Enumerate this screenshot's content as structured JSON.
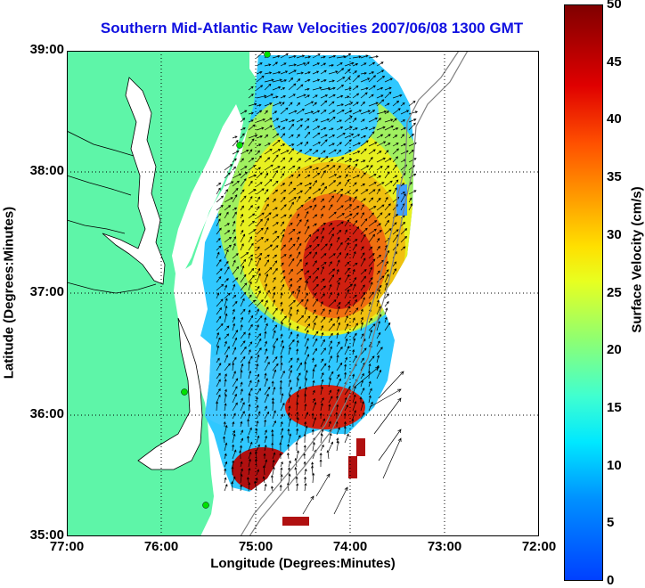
{
  "title": "Southern Mid-Atlantic Raw Velocities 2007/06/08 1300 GMT",
  "xlabel": "Longitude (Degrees:Minutes)",
  "ylabel": "Latitude (Degrees:Minutes)",
  "colorbar": {
    "label": "Surface Velocity (cm/s)",
    "ticks": [
      "50",
      "45",
      "40",
      "35",
      "30",
      "25",
      "20",
      "15",
      "10",
      "5",
      "0"
    ],
    "range": [
      0,
      50
    ]
  },
  "x_ticks": [
    "77:00",
    "76:00",
    "75:00",
    "74:00",
    "73:00",
    "72:00"
  ],
  "y_ticks": [
    "39:00",
    "38:00",
    "37:00",
    "36:00",
    "35:00"
  ],
  "colors": {
    "land": "#5ef5a8",
    "title": "#1010e0",
    "grid": "#000000",
    "bathymetry": "#808080",
    "station": "#00e000"
  }
}
